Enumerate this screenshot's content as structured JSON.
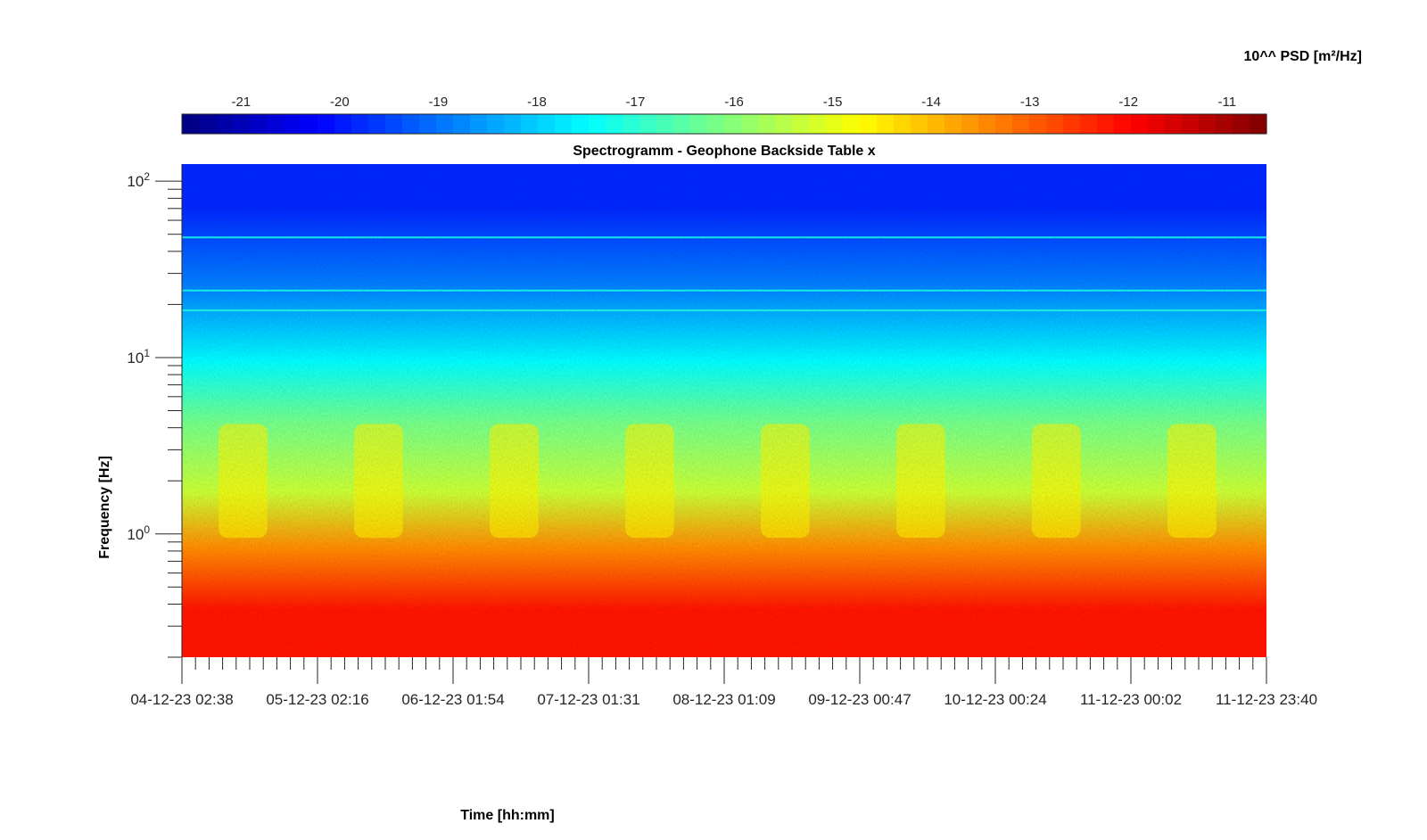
{
  "chart_data": {
    "type": "heatmap",
    "title": "Spectrogramm - Geophone Backside Table x",
    "xlabel": "Time [hh:mm]",
    "ylabel": "Frequency [Hz]",
    "colorbar_label": "10^^ PSD [m²/Hz]",
    "colormap": "jet",
    "color_range": [
      -21.6,
      -10.6
    ],
    "colorbar_ticks": [
      -21,
      -20,
      -19,
      -18,
      -17,
      -16,
      -15,
      -14,
      -13,
      -12,
      -11
    ],
    "colorbar_location": "top",
    "x_tick_labels": [
      "04-12-23 02:38",
      "05-12-23 02:16",
      "06-12-23 01:54",
      "07-12-23 01:31",
      "08-12-23 01:09",
      "09-12-23 00:47",
      "10-12-23 00:24",
      "11-12-23 00:02",
      "11-12-23 23:40"
    ],
    "y_scale": "log",
    "y_range_hz": [
      0.2,
      125
    ],
    "y_ticks": [
      {
        "value": 1,
        "base": "10",
        "exp": "0"
      },
      {
        "value": 10,
        "base": "10",
        "exp": "1"
      },
      {
        "value": 100,
        "base": "10",
        "exp": "2"
      }
    ],
    "psd_bands": [
      {
        "freq_hz": [
          0.2,
          0.7
        ],
        "log10_psd_approx": -12.2
      },
      {
        "freq_hz": [
          0.7,
          1.0
        ],
        "log10_psd_approx": -13.5
      },
      {
        "freq_hz": [
          1.0,
          3.0
        ],
        "log10_psd_approx": -15.3
      },
      {
        "freq_hz": [
          3.0,
          6.0
        ],
        "log10_psd_approx": -16.2
      },
      {
        "freq_hz": [
          6.0,
          15.0
        ],
        "log10_psd_approx": -17.5
      },
      {
        "freq_hz": [
          15.0,
          40.0
        ],
        "log10_psd_approx": -18.8
      },
      {
        "freq_hz": [
          40.0,
          125.0
        ],
        "log10_psd_approx": -19.8
      }
    ],
    "narrowband_lines_hz": [
      24,
      48,
      18.5
    ],
    "daily_activity_peaks_log10_psd": -14.6,
    "grid": false
  }
}
